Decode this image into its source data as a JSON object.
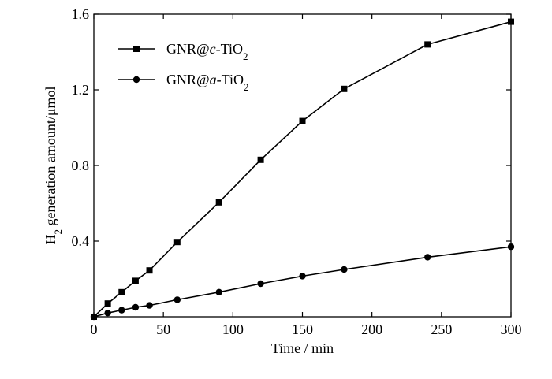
{
  "chart_data": {
    "type": "line",
    "xlabel": "Time / min",
    "ylabel": {
      "parts": [
        {
          "text": "H",
          "sub": false
        },
        {
          "text": "2",
          "sub": true
        },
        {
          "text": " generation amount/μmol",
          "sub": false
        }
      ]
    },
    "xlim": [
      0,
      300
    ],
    "ylim": [
      0,
      1.6
    ],
    "xticks": [
      0,
      50,
      100,
      150,
      200,
      250,
      300
    ],
    "xtick_labels": [
      "0",
      "50",
      "100",
      "150",
      "200",
      "250",
      "300"
    ],
    "yticks": [
      0.4,
      0.8,
      1.2,
      1.6
    ],
    "ytick_labels": [
      "0.4",
      "0.8",
      "1.2",
      "1.6"
    ],
    "grid": false,
    "legend_position": "top-left",
    "series": [
      {
        "name": "GNR@c-TiO2",
        "label_parts": [
          {
            "text": "GNR@",
            "style": "normal",
            "sub": false
          },
          {
            "text": "c",
            "style": "italic",
            "sub": false
          },
          {
            "text": "-TiO",
            "style": "normal",
            "sub": false
          },
          {
            "text": "2",
            "style": "normal",
            "sub": true
          }
        ],
        "marker": "square",
        "color": "#000000",
        "x": [
          0,
          10,
          20,
          30,
          40,
          60,
          90,
          120,
          150,
          180,
          240,
          300
        ],
        "y": [
          0.0,
          0.07,
          0.13,
          0.19,
          0.245,
          0.395,
          0.605,
          0.83,
          1.035,
          1.205,
          1.44,
          1.56
        ]
      },
      {
        "name": "GNR@a-TiO2",
        "label_parts": [
          {
            "text": "GNR@",
            "style": "normal",
            "sub": false
          },
          {
            "text": "a",
            "style": "italic",
            "sub": false
          },
          {
            "text": "-TiO",
            "style": "normal",
            "sub": false
          },
          {
            "text": "2",
            "style": "normal",
            "sub": true
          }
        ],
        "marker": "circle",
        "color": "#000000",
        "x": [
          0,
          10,
          20,
          30,
          40,
          60,
          90,
          120,
          150,
          180,
          240,
          300
        ],
        "y": [
          0.0,
          0.02,
          0.035,
          0.05,
          0.06,
          0.09,
          0.13,
          0.175,
          0.215,
          0.25,
          0.315,
          0.37
        ]
      }
    ]
  }
}
